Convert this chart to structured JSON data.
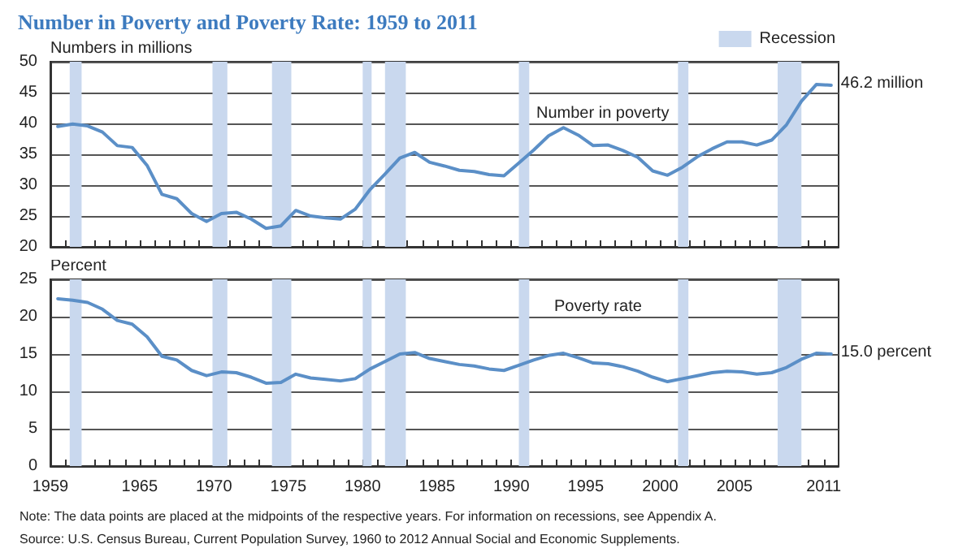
{
  "chart_data": [
    {
      "type": "line",
      "title": "Number in Poverty and Poverty Rate: 1959 to 2011",
      "ylabel": "Numbers in millions",
      "x": [
        1959.5,
        1960.5,
        1961.5,
        1962.5,
        1963.5,
        1964.5,
        1965.5,
        1966.5,
        1967.5,
        1968.5,
        1969.5,
        1970.5,
        1971.5,
        1972.5,
        1973.5,
        1974.5,
        1975.5,
        1976.5,
        1977.5,
        1978.5,
        1979.5,
        1980.5,
        1981.5,
        1982.5,
        1983.5,
        1984.5,
        1985.5,
        1986.5,
        1987.5,
        1988.5,
        1989.5,
        1990.5,
        1991.5,
        1992.5,
        1993.5,
        1994.5,
        1995.5,
        1996.5,
        1997.5,
        1998.5,
        1999.5,
        2000.5,
        2001.5,
        2002.5,
        2003.5,
        2004.5,
        2005.5,
        2006.5,
        2007.5,
        2008.5,
        2009.5,
        2010.5,
        2011.5
      ],
      "series": [
        {
          "color": "#5b8fc7",
          "values": [
            39.5,
            39.9,
            39.6,
            38.6,
            36.4,
            36.1,
            33.2,
            28.5,
            27.8,
            25.4,
            24.1,
            25.4,
            25.6,
            24.5,
            23.0,
            23.4,
            25.9,
            25.0,
            24.7,
            24.5,
            26.1,
            29.3,
            31.8,
            34.4,
            35.3,
            33.7,
            33.1,
            32.4,
            32.2,
            31.7,
            31.5,
            33.6,
            35.7,
            38.0,
            39.3,
            38.1,
            36.4,
            36.5,
            35.6,
            34.5,
            32.3,
            31.6,
            32.9,
            34.6,
            35.9,
            37.0,
            37.0,
            36.5,
            37.3,
            39.8,
            43.6,
            46.3,
            46.2
          ]
        }
      ],
      "xlim": [
        1959,
        2012
      ],
      "xticks": [
        1959,
        {
          "value": 1960,
          "label": null
        },
        {
          "value": 1961,
          "label": null
        },
        {
          "value": 1962,
          "label": null
        },
        {
          "value": 1963,
          "label": null
        },
        {
          "value": 1964,
          "label": null
        },
        1965,
        {
          "value": 1966,
          "label": null
        },
        {
          "value": 1967,
          "label": null
        },
        {
          "value": 1968,
          "label": null
        },
        {
          "value": 1969,
          "label": null
        },
        1970,
        {
          "value": 1971,
          "label": null
        },
        {
          "value": 1972,
          "label": null
        },
        {
          "value": 1973,
          "label": null
        },
        {
          "value": 1974,
          "label": null
        },
        1975,
        {
          "value": 1976,
          "label": null
        },
        {
          "value": 1977,
          "label": null
        },
        {
          "value": 1978,
          "label": null
        },
        {
          "value": 1979,
          "label": null
        },
        1980,
        {
          "value": 1981,
          "label": null
        },
        {
          "value": 1982,
          "label": null
        },
        {
          "value": 1983,
          "label": null
        },
        {
          "value": 1984,
          "label": null
        },
        1985,
        {
          "value": 1986,
          "label": null
        },
        {
          "value": 1987,
          "label": null
        },
        {
          "value": 1988,
          "label": null
        },
        {
          "value": 1989,
          "label": null
        },
        1990,
        {
          "value": 1991,
          "label": null
        },
        {
          "value": 1992,
          "label": null
        },
        {
          "value": 1993,
          "label": null
        },
        {
          "value": 1994,
          "label": null
        },
        1995,
        {
          "value": 1996,
          "label": null
        },
        {
          "value": 1997,
          "label": null
        },
        {
          "value": 1998,
          "label": null
        },
        {
          "value": 1999,
          "label": null
        },
        2000,
        {
          "value": 2001,
          "label": null
        },
        {
          "value": 2002,
          "label": null
        },
        {
          "value": 2003,
          "label": null
        },
        {
          "value": 2004,
          "label": null
        },
        2005,
        {
          "value": 2006,
          "label": null
        },
        {
          "value": 2007,
          "label": null
        },
        {
          "value": 2008,
          "label": null
        },
        {
          "value": 2009,
          "label": null
        },
        {
          "value": 2010,
          "label": null
        },
        2011
      ],
      "ylim": [
        20,
        50
      ],
      "yticks": [
        20,
        25,
        30,
        35,
        40,
        45,
        50
      ],
      "grid": "y",
      "tick_labels": "y",
      "legend": "top right",
      "marker": "none",
      "line_style": "solid",
      "bands": [
        {
          "axis": "x",
          "from": 1960.3,
          "to": 1961.1,
          "label": "Recession",
          "color": "#c9d8ee"
        },
        {
          "axis": "x",
          "from": 1969.9,
          "to": 1970.9,
          "color": "#c9d8ee"
        },
        {
          "axis": "x",
          "from": 1973.9,
          "to": 1975.2,
          "color": "#c9d8ee"
        },
        {
          "axis": "x",
          "from": 1980.0,
          "to": 1980.6,
          "color": "#c9d8ee"
        },
        {
          "axis": "x",
          "from": 1981.5,
          "to": 1982.9,
          "color": "#c9d8ee"
        },
        {
          "axis": "x",
          "from": 1990.5,
          "to": 1991.2,
          "color": "#c9d8ee"
        },
        {
          "axis": "x",
          "from": 2001.2,
          "to": 2001.9,
          "color": "#c9d8ee"
        },
        {
          "axis": "x",
          "from": 2007.9,
          "to": 2009.5,
          "color": "#c9d8ee"
        }
      ],
      "annotations": [
        "Number in poverty",
        {
          "text": "46.2 million",
          "x": 2011.5,
          "y": 46.2
        }
      ]
    },
    {
      "type": "line",
      "ylabel": "Percent",
      "x": [
        1959.5,
        1960.5,
        1961.5,
        1962.5,
        1963.5,
        1964.5,
        1965.5,
        1966.5,
        1967.5,
        1968.5,
        1969.5,
        1970.5,
        1971.5,
        1972.5,
        1973.5,
        1974.5,
        1975.5,
        1976.5,
        1977.5,
        1978.5,
        1979.5,
        1980.5,
        1981.5,
        1982.5,
        1983.5,
        1984.5,
        1985.5,
        1986.5,
        1987.5,
        1988.5,
        1989.5,
        1990.5,
        1991.5,
        1992.5,
        1993.5,
        1994.5,
        1995.5,
        1996.5,
        1997.5,
        1998.5,
        1999.5,
        2000.5,
        2001.5,
        2002.5,
        2003.5,
        2004.5,
        2005.5,
        2006.5,
        2007.5,
        2008.5,
        2009.5,
        2010.5,
        2011.5
      ],
      "series": [
        {
          "color": "#5b8fc7",
          "values": [
            22.4,
            22.2,
            21.9,
            21.0,
            19.5,
            19.0,
            17.3,
            14.7,
            14.2,
            12.8,
            12.1,
            12.6,
            12.5,
            11.9,
            11.1,
            11.2,
            12.3,
            11.8,
            11.6,
            11.4,
            11.7,
            13.0,
            14.0,
            15.0,
            15.2,
            14.4,
            14.0,
            13.6,
            13.4,
            13.0,
            12.8,
            13.5,
            14.2,
            14.8,
            15.1,
            14.5,
            13.8,
            13.7,
            13.3,
            12.7,
            11.9,
            11.3,
            11.7,
            12.1,
            12.5,
            12.7,
            12.6,
            12.3,
            12.5,
            13.2,
            14.3,
            15.1,
            15.0
          ]
        }
      ],
      "xlim": [
        1959,
        2012
      ],
      "xticks": [
        1959,
        {
          "value": 1960,
          "label": null
        },
        {
          "value": 1961,
          "label": null
        },
        {
          "value": 1962,
          "label": null
        },
        {
          "value": 1963,
          "label": null
        },
        {
          "value": 1964,
          "label": null
        },
        1965,
        {
          "value": 1966,
          "label": null
        },
        {
          "value": 1967,
          "label": null
        },
        {
          "value": 1968,
          "label": null
        },
        {
          "value": 1969,
          "label": null
        },
        1970,
        {
          "value": 1971,
          "label": null
        },
        {
          "value": 1972,
          "label": null
        },
        {
          "value": 1973,
          "label": null
        },
        {
          "value": 1974,
          "label": null
        },
        1975,
        {
          "value": 1976,
          "label": null
        },
        {
          "value": 1977,
          "label": null
        },
        {
          "value": 1978,
          "label": null
        },
        {
          "value": 1979,
          "label": null
        },
        1980,
        {
          "value": 1981,
          "label": null
        },
        {
          "value": 1982,
          "label": null
        },
        {
          "value": 1983,
          "label": null
        },
        {
          "value": 1984,
          "label": null
        },
        1985,
        {
          "value": 1986,
          "label": null
        },
        {
          "value": 1987,
          "label": null
        },
        {
          "value": 1988,
          "label": null
        },
        {
          "value": 1989,
          "label": null
        },
        1990,
        {
          "value": 1991,
          "label": null
        },
        {
          "value": 1992,
          "label": null
        },
        {
          "value": 1993,
          "label": null
        },
        {
          "value": 1994,
          "label": null
        },
        1995,
        {
          "value": 1996,
          "label": null
        },
        {
          "value": 1997,
          "label": null
        },
        {
          "value": 1998,
          "label": null
        },
        {
          "value": 1999,
          "label": null
        },
        2000,
        {
          "value": 2001,
          "label": null
        },
        {
          "value": 2002,
          "label": null
        },
        {
          "value": 2003,
          "label": null
        },
        {
          "value": 2004,
          "label": null
        },
        2005,
        {
          "value": 2006,
          "label": null
        },
        {
          "value": 2007,
          "label": null
        },
        {
          "value": 2008,
          "label": null
        },
        {
          "value": 2009,
          "label": null
        },
        {
          "value": 2010,
          "label": null
        },
        2011
      ],
      "ylim": [
        0,
        25
      ],
      "yticks": [
        0,
        5,
        10,
        15,
        20,
        25
      ],
      "grid": "y",
      "marker": "none",
      "line_style": "solid",
      "bands": [
        {
          "axis": "x",
          "from": 1960.3,
          "to": 1961.1,
          "color": "#c9d8ee"
        },
        {
          "axis": "x",
          "from": 1969.9,
          "to": 1970.9,
          "color": "#c9d8ee"
        },
        {
          "axis": "x",
          "from": 1973.9,
          "to": 1975.2,
          "color": "#c9d8ee"
        },
        {
          "axis": "x",
          "from": 1980.0,
          "to": 1980.6,
          "color": "#c9d8ee"
        },
        {
          "axis": "x",
          "from": 1981.5,
          "to": 1982.9,
          "color": "#c9d8ee"
        },
        {
          "axis": "x",
          "from": 1990.5,
          "to": 1991.2,
          "color": "#c9d8ee"
        },
        {
          "axis": "x",
          "from": 2001.2,
          "to": 2001.9,
          "color": "#c9d8ee"
        },
        {
          "axis": "x",
          "from": 2007.9,
          "to": 2009.5,
          "color": "#c9d8ee"
        }
      ],
      "annotations": [
        "Poverty rate",
        {
          "text": "15.0 percent",
          "x": 2011.5,
          "y": 15.0
        },
        "Note: The data points are placed at the midpoints of the respective years. For information on recessions, see Appendix A.",
        "Source: U.S. Census Bureau, Current Population Survey, 1960 to 2012 Annual Social and Economic Supplements."
      ]
    }
  ]
}
